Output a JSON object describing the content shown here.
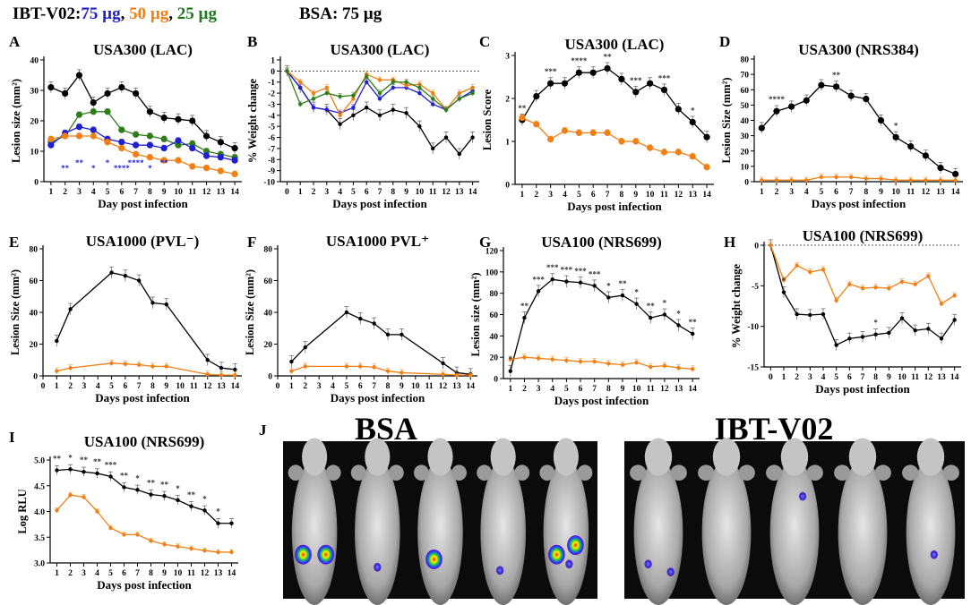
{
  "legend": {
    "prefix": "IBT-V02:",
    "groups": [
      {
        "label": "75 µg",
        "color": "#1f1fd0"
      },
      {
        "label": "50 µg",
        "color": "#f07f14"
      },
      {
        "label": "25 µg",
        "color": "#1e7a1e"
      }
    ],
    "bsa": "BSA: 75 µg"
  },
  "colors": {
    "bsa": "#000000",
    "v75": "#1f1fd0",
    "v50": "#f07f14",
    "v25": "#2e7d1a"
  },
  "chart_data": [
    {
      "panel": "A",
      "type": "line",
      "title": "USA300 (LAC)",
      "xlabel": "Day post infection",
      "ylabel": "Lesion size (mm²)",
      "x": [
        1,
        2,
        3,
        4,
        5,
        6,
        7,
        8,
        9,
        10,
        11,
        12,
        13,
        14
      ],
      "xlim": [
        0.5,
        14.5
      ],
      "ylim": [
        0,
        40
      ],
      "yticks": [
        0,
        10,
        20,
        30,
        40
      ],
      "series": [
        {
          "name": "BSA 75 µg",
          "color": "#000000",
          "values": [
            31,
            29,
            35,
            26,
            29,
            31,
            29,
            23,
            21,
            20.5,
            20,
            15,
            13,
            11
          ]
        },
        {
          "name": "IBT-V02 25 µg",
          "color": "#2e7d1a",
          "values": [
            13,
            15,
            22,
            23,
            23,
            17,
            15.5,
            15,
            14,
            12,
            12.5,
            10,
            9,
            8
          ]
        },
        {
          "name": "IBT-V02 75 µg",
          "color": "#1f1fd0",
          "values": [
            12,
            16,
            18,
            17,
            14,
            13,
            12,
            12,
            11,
            13.5,
            11,
            8.5,
            8,
            7
          ]
        },
        {
          "name": "IBT-V02 50 µg",
          "color": "#f07f14",
          "values": [
            14,
            15,
            15,
            15,
            13,
            11,
            9,
            8,
            7,
            7,
            5,
            4.5,
            3.5,
            2.5
          ]
        }
      ],
      "annotations": [
        "**",
        "**",
        "*",
        "*",
        "****",
        "****",
        "*",
        "**"
      ]
    },
    {
      "panel": "B",
      "type": "line",
      "title": "USA300 (LAC)",
      "xlabel": "Days post infection",
      "ylabel": "% Weight change",
      "x": [
        0,
        1,
        2,
        3,
        4,
        5,
        6,
        7,
        8,
        9,
        10,
        11,
        12,
        13,
        14
      ],
      "xlim": [
        -0.5,
        14.5
      ],
      "ylim": [
        -10,
        1
      ],
      "yticks": [
        1,
        0,
        -1,
        -2,
        -3,
        -4,
        -5,
        -6,
        -7,
        -8,
        -9,
        -10
      ],
      "reference_line": 0,
      "series": [
        {
          "name": "BSA 75 µg",
          "color": "#000000",
          "values": [
            0,
            -1.5,
            -3.3,
            -3.5,
            -4.8,
            -4,
            -3.3,
            -4,
            -3.5,
            -3.8,
            -5,
            -7,
            -6,
            -7.5,
            -6
          ]
        },
        {
          "name": "IBT-V02 75 µg",
          "color": "#1f1fd0",
          "values": [
            0,
            -1.5,
            -3.3,
            -3.5,
            -3.8,
            -3.3,
            -1,
            -2.5,
            -1.5,
            -1.5,
            -2,
            -3,
            -3.5,
            -2.5,
            -1.8
          ]
        },
        {
          "name": "IBT-V02 50 µg",
          "color": "#f07f14",
          "values": [
            0,
            -1,
            -2,
            -1.5,
            -4,
            -2.5,
            -0.3,
            -0.8,
            -0.8,
            -1.3,
            -1.2,
            -2,
            -3.5,
            -2,
            -1.5
          ]
        },
        {
          "name": "IBT-V02 25 µg",
          "color": "#2e7d1a",
          "values": [
            0,
            -3,
            -2.5,
            -2,
            -2.3,
            -2.2,
            -0.5,
            -2,
            -1,
            -1,
            -1.5,
            -2.5,
            -3.5,
            -2.5,
            -2
          ]
        }
      ]
    },
    {
      "panel": "C",
      "type": "line",
      "title": "USA300 (LAC)",
      "xlabel": "Days post infection",
      "ylabel": "Lesion Score",
      "x": [
        1,
        2,
        3,
        4,
        5,
        6,
        7,
        8,
        9,
        10,
        11,
        12,
        13,
        14
      ],
      "xlim": [
        0.5,
        14.5
      ],
      "ylim": [
        0,
        3
      ],
      "yticks": [
        0,
        1,
        2,
        3
      ],
      "series": [
        {
          "name": "BSA 75 µg",
          "color": "#000000",
          "values": [
            1.5,
            2.05,
            2.35,
            2.35,
            2.6,
            2.6,
            2.7,
            2.45,
            2.15,
            2.35,
            2.2,
            1.75,
            1.45,
            1.1
          ]
        },
        {
          "name": "IBT-V02 50 µg",
          "color": "#f07f14",
          "values": [
            1.55,
            1.4,
            1.05,
            1.25,
            1.2,
            1.2,
            1.2,
            1.0,
            1.0,
            0.85,
            0.75,
            0.75,
            0.65,
            0.4
          ]
        }
      ],
      "annotations": [
        "**",
        "***",
        "****",
        "**",
        "***",
        "***",
        "*"
      ]
    },
    {
      "panel": "D",
      "type": "line",
      "title": "USA300 (NRS384)",
      "xlabel": "Days post infection",
      "ylabel": "Lesion Size (mm²)",
      "x": [
        1,
        2,
        3,
        4,
        5,
        6,
        7,
        8,
        9,
        10,
        11,
        12,
        13,
        14
      ],
      "xlim": [
        0.5,
        14.5
      ],
      "ylim": [
        0,
        80
      ],
      "yticks": [
        0,
        10,
        20,
        30,
        40,
        50,
        60,
        70,
        80
      ],
      "series": [
        {
          "name": "BSA 75 µg",
          "color": "#000000",
          "values": [
            35,
            46,
            49,
            53,
            63,
            62,
            56,
            54,
            40,
            29,
            23,
            17,
            9,
            5
          ]
        },
        {
          "name": "IBT-V02 50 µg",
          "color": "#f07f14",
          "values": [
            1,
            1,
            1,
            1,
            3,
            3,
            3,
            2,
            2,
            1,
            1,
            1,
            1,
            1
          ]
        }
      ],
      "annotations": [
        "****",
        "**",
        "*"
      ]
    },
    {
      "panel": "E",
      "type": "line",
      "title": "USA1000 (PVL⁻)",
      "xlabel": "Days post infection",
      "ylabel": "Lesion Size (mm²)",
      "x": [
        1,
        2,
        5,
        6,
        7,
        8,
        9,
        12,
        13,
        14
      ],
      "xlim": [
        0,
        14.5
      ],
      "ylim": [
        0,
        80
      ],
      "yticks": [
        0,
        20,
        40,
        60,
        80
      ],
      "series": [
        {
          "name": "BSA 75 µg",
          "color": "#000000",
          "values": [
            22,
            42,
            65,
            63,
            60,
            46,
            45,
            10,
            5,
            4
          ]
        },
        {
          "name": "IBT-V02 50 µg",
          "color": "#f07f14",
          "values": [
            3,
            5,
            8,
            7.5,
            7,
            6,
            6,
            1,
            0.5,
            0.5
          ]
        }
      ]
    },
    {
      "panel": "F",
      "type": "line",
      "title": "USA1000 PVL⁺",
      "xlabel": "Days post infection",
      "ylabel": "Lesion Size (mm²)",
      "x": [
        1,
        2,
        5,
        6,
        7,
        8,
        9,
        12,
        13,
        14
      ],
      "xlim": [
        0,
        14.5
      ],
      "ylim": [
        0,
        80
      ],
      "yticks": [
        0,
        20,
        40,
        60,
        80
      ],
      "series": [
        {
          "name": "BSA 75 µg",
          "color": "#000000",
          "values": [
            9,
            18,
            40,
            36,
            33,
            26,
            26,
            8,
            2,
            1
          ]
        },
        {
          "name": "IBT-V02 50 µg",
          "color": "#f07f14",
          "values": [
            3,
            6,
            6,
            6,
            5.5,
            3,
            2,
            1,
            0.5,
            0.5
          ]
        }
      ]
    },
    {
      "panel": "G",
      "type": "line",
      "title": "USA100 (NRS699)",
      "xlabel": "Days post infection",
      "ylabel": "Lesion size (mm²)",
      "x": [
        1,
        2,
        3,
        4,
        5,
        6,
        7,
        8,
        9,
        10,
        11,
        12,
        13,
        14
      ],
      "xlim": [
        0.5,
        14.5
      ],
      "ylim": [
        0,
        120
      ],
      "yticks": [
        0,
        20,
        40,
        60,
        80,
        100,
        120
      ],
      "series": [
        {
          "name": "BSA 75 µg",
          "color": "#000000",
          "values": [
            7,
            57,
            82,
            93,
            91,
            90,
            87,
            76,
            78,
            70,
            57,
            60,
            50,
            42
          ]
        },
        {
          "name": "IBT-V02 50 µg",
          "color": "#f07f14",
          "values": [
            18,
            20,
            19,
            18,
            17,
            16,
            16,
            14,
            13,
            15,
            11,
            12,
            10,
            9
          ]
        }
      ],
      "annotations": [
        "*",
        "**",
        "***",
        "***",
        "***",
        "***",
        "***",
        "*",
        "**",
        "*",
        "**",
        "*",
        "*",
        "**"
      ]
    },
    {
      "panel": "H",
      "type": "line",
      "title": "USA100 (NRS699)",
      "xlabel": "Days post infection",
      "ylabel": "% Weight change",
      "x": [
        0,
        1,
        2,
        3,
        4,
        5,
        6,
        7,
        8,
        9,
        10,
        11,
        12,
        13,
        14
      ],
      "xlim": [
        -0.5,
        14.5
      ],
      "ylim": [
        -15,
        0
      ],
      "yticks": [
        0,
        -5,
        -10,
        -15
      ],
      "reference_line": 0,
      "series": [
        {
          "name": "BSA 75 µg",
          "color": "#000000",
          "values": [
            0,
            -5.8,
            -8.5,
            -8.6,
            -8.5,
            -12.3,
            -11.5,
            -11.3,
            -11,
            -10.8,
            -9,
            -10.5,
            -10.3,
            -11.5,
            -9.2
          ]
        },
        {
          "name": "IBT-V02 50 µg",
          "color": "#f07f14",
          "values": [
            0,
            -4.3,
            -2.5,
            -3.3,
            -3,
            -6.8,
            -4.8,
            -5.3,
            -5.2,
            -5.3,
            -4.5,
            -4.8,
            -3.8,
            -7.2,
            -6.2
          ]
        }
      ],
      "annotations": [
        "*",
        "*"
      ]
    },
    {
      "panel": "I",
      "type": "line",
      "title": "USA100 (NRS699)",
      "xlabel": "Days post infection",
      "ylabel": "Log RLU",
      "x": [
        1,
        2,
        3,
        4,
        5,
        6,
        7,
        8,
        9,
        10,
        11,
        12,
        13,
        14
      ],
      "xlim": [
        0.5,
        14.5
      ],
      "ylim": [
        3.0,
        5.0
      ],
      "yticks": [
        "3.0",
        "3.5",
        "4.0",
        "4.5",
        "5.0"
      ],
      "series": [
        {
          "name": "BSA 75 µg",
          "color": "#000000",
          "values": [
            4.8,
            4.82,
            4.77,
            4.74,
            4.68,
            4.47,
            4.42,
            4.33,
            4.3,
            4.22,
            4.1,
            4.02,
            3.77,
            3.77
          ]
        },
        {
          "name": "IBT-V02 50 µg",
          "color": "#f07f14",
          "values": [
            4.02,
            4.32,
            4.28,
            4.0,
            3.68,
            3.55,
            3.55,
            3.43,
            3.36,
            3.32,
            3.28,
            3.24,
            3.21,
            3.21
          ]
        }
      ],
      "annotations": [
        "**",
        "*",
        "**",
        "**",
        "***",
        "**",
        "*",
        "**",
        "**",
        "*",
        "**",
        "*",
        "*"
      ]
    }
  ],
  "panel_j": {
    "letter": "J",
    "groups": [
      {
        "title": "BSA",
        "mice": 5,
        "signals": [
          [
            0.32,
            0.72
          ],
          [
            0.68,
            0.72
          ],
          [
            0.62,
            0.82
          ],
          [
            0.5,
            0.75
          ],
          [
            0.48,
            0.85
          ],
          [
            0.22,
            0.8
          ],
          [
            0.52,
            0.72
          ],
          [
            0.78,
            0.66
          ]
        ]
      },
      {
        "title": "IBT-V02",
        "mice": 5,
        "signals": [
          [
            0.35,
            0.78
          ],
          [
            0.68,
            0.83
          ],
          [
            0.65,
            0.35
          ],
          [
            0.57,
            0.72
          ]
        ]
      }
    ]
  }
}
